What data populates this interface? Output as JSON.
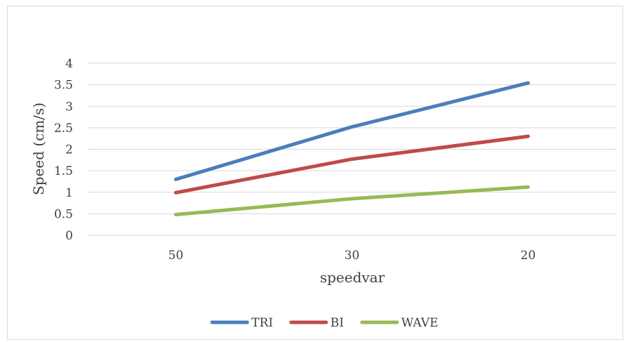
{
  "chart_data": {
    "type": "line",
    "title": "",
    "xlabel": "speedvar",
    "ylabel": "Speed (cm/s)",
    "categories": [
      "50",
      "30",
      "20"
    ],
    "ylim": [
      0,
      4
    ],
    "yticks": [
      0,
      0.5,
      1,
      1.5,
      2,
      2.5,
      3,
      3.5,
      4
    ],
    "ytick_labels": [
      "0",
      "0.5",
      "1",
      "1.5",
      "2",
      "2.5",
      "3",
      "3.5",
      "4"
    ],
    "grid": true,
    "legend_position": "bottom",
    "series": [
      {
        "name": "TRI",
        "values": [
          1.3,
          2.52,
          3.54
        ],
        "color": "#4a7ebb"
      },
      {
        "name": "BI",
        "values": [
          0.99,
          1.77,
          2.3
        ],
        "color": "#be4b48"
      },
      {
        "name": "WAVE",
        "values": [
          0.48,
          0.85,
          1.12
        ],
        "color": "#98b954"
      }
    ]
  }
}
